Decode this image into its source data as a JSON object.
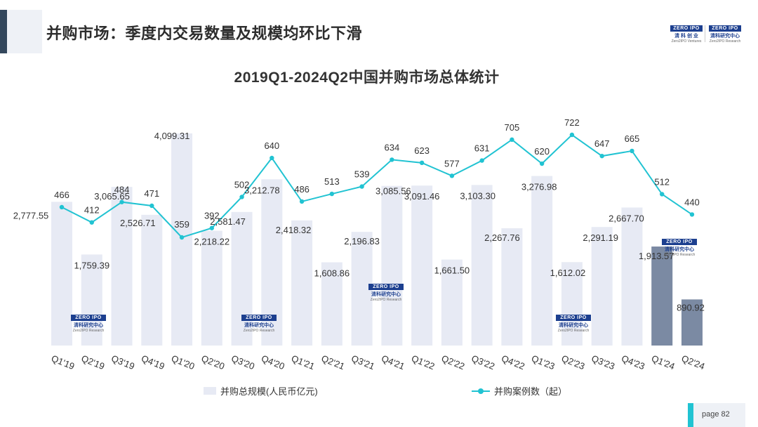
{
  "header": {
    "title": "并购市场：季度内交易数量及规模均环比下滑",
    "logo_left": {
      "top": "ZERO IPO",
      "cn": "清 科 创 业",
      "en": "Zero2IPO Ventures"
    },
    "logo_right": {
      "top": "ZERO IPO",
      "cn": "清科研究中心",
      "en": "Zero2IPO Research"
    }
  },
  "watermark": {
    "top": "ZERO IPO",
    "cn": "清科研究中心",
    "en": "Zero2IPO Research"
  },
  "footer": {
    "page_label": "page  82"
  },
  "colors": {
    "bar": "#e7eaf4",
    "bar_highlight": "#7b8aa3",
    "line": "#21c3d2",
    "text": "#333333"
  },
  "chart_data": {
    "type": "bar",
    "title": "2019Q1-2024Q2中国并购市场总体统计",
    "categories": [
      "Q1'19",
      "Q2'19",
      "Q3'19",
      "Q4'19",
      "Q1'20",
      "Q2'20",
      "Q3'20",
      "Q4'20",
      "Q1'21",
      "Q2'21",
      "Q3'21",
      "Q4'21",
      "Q1'22",
      "Q2'22",
      "Q3'22",
      "Q4'22",
      "Q1'23",
      "Q2'23",
      "Q3'23",
      "Q4'23",
      "Q1'24",
      "Q2'24"
    ],
    "series": [
      {
        "name": "并购总规模(人民币亿元)",
        "type": "bar",
        "values": [
          2777.55,
          1759.39,
          3065.65,
          2526.71,
          4099.31,
          2218.22,
          2581.47,
          3212.78,
          2418.32,
          1608.86,
          2196.83,
          3085.56,
          3091.46,
          1661.5,
          3103.3,
          2267.76,
          3276.98,
          1612.02,
          2291.19,
          2667.7,
          1913.57,
          890.92
        ],
        "labels": [
          "2,777.55",
          "1,759.39",
          "3,065.65",
          "2,526.71",
          "4,099.31",
          "2,218.22",
          "2,581.47",
          "3,212.78",
          "2,418.32",
          "1,608.86",
          "2,196.83",
          "3,085.56",
          "3,091.46",
          "1,661.50",
          "3,103.30",
          "2,267.76",
          "3,276.98",
          "1,612.02",
          "2,291.19",
          "2,667.70",
          "1,913.57",
          "890.92"
        ],
        "highlight": [
          "Q1'24",
          "Q2'24"
        ]
      },
      {
        "name": "并购案例数（起）",
        "type": "line",
        "values": [
          466,
          412,
          484,
          471,
          359,
          392,
          502,
          640,
          486,
          513,
          539,
          634,
          623,
          577,
          631,
          705,
          620,
          722,
          647,
          665,
          512,
          440
        ],
        "labels": [
          "466",
          "412",
          "484",
          "471",
          "359",
          "392",
          "502",
          "640",
          "486",
          "513",
          "539",
          "634",
          "623",
          "577",
          "631",
          "705",
          "620",
          "722",
          "647",
          "665",
          "512",
          "440"
        ]
      }
    ],
    "legend_position": "bottom",
    "grid": false,
    "bar_axis_range": [
      0,
      4099.31
    ],
    "line_axis_range": [
      0,
      722
    ]
  }
}
